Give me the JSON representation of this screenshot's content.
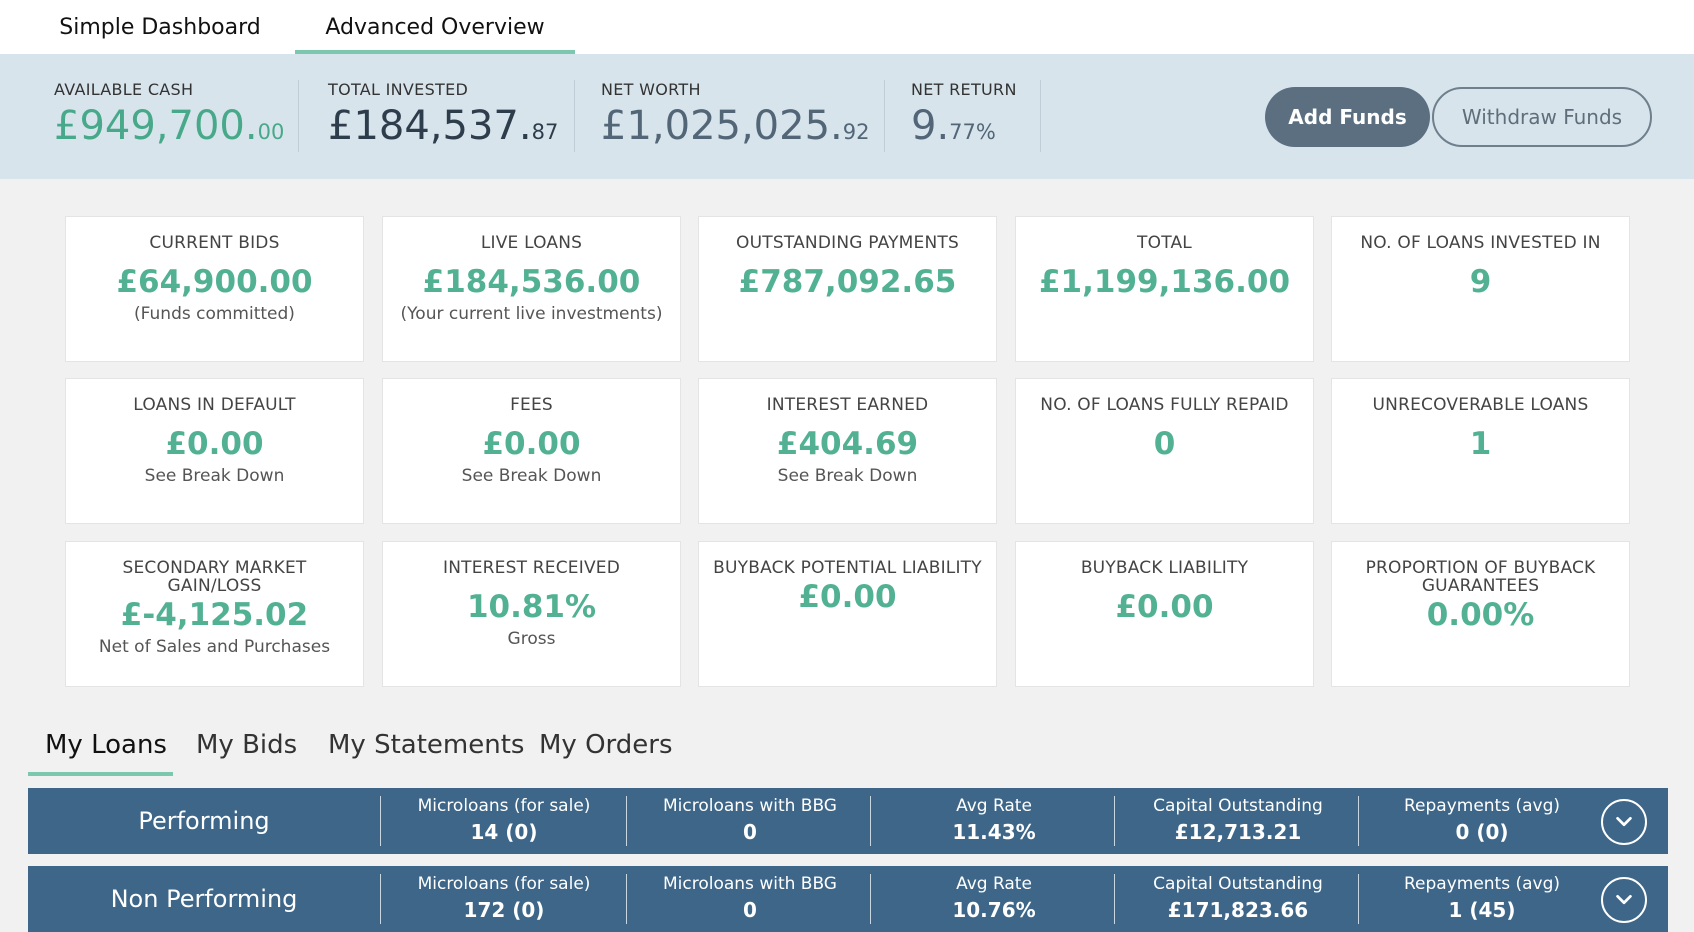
{
  "top_tabs": [
    {
      "label": "Simple Dashboard",
      "active": false
    },
    {
      "label": "Advanced Overview",
      "active": true
    }
  ],
  "summary": {
    "available_cash": {
      "label": "AVAILABLE CASH",
      "main": "£949,700.",
      "decimal": "00"
    },
    "total_invested": {
      "label": "TOTAL INVESTED",
      "main": "£184,537.",
      "decimal": "87"
    },
    "net_worth": {
      "label": "NET WORTH",
      "main": "£1,025,025.",
      "decimal": "92"
    },
    "net_return": {
      "label": "NET RETURN",
      "main": "9.",
      "decimal": "77%"
    }
  },
  "buttons": {
    "add_funds": "Add Funds",
    "withdraw_funds": "Withdraw Funds"
  },
  "cards": [
    {
      "title": "CURRENT BIDS",
      "value": "£64,900.00",
      "sub": "(Funds committed)"
    },
    {
      "title": "LIVE LOANS",
      "value": "£184,536.00",
      "sub": "(Your current live investments)"
    },
    {
      "title": "OUTSTANDING PAYMENTS",
      "value": "£787,092.65",
      "sub": ""
    },
    {
      "title": "TOTAL",
      "value": "£1,199,136.00",
      "sub": ""
    },
    {
      "title": "NO. OF LOANS INVESTED IN",
      "value": "9",
      "sub": ""
    },
    {
      "title": "LOANS IN DEFAULT",
      "value": "£0.00",
      "sub": "See Break Down"
    },
    {
      "title": "FEES",
      "value": "£0.00",
      "sub": "See Break Down"
    },
    {
      "title": "INTEREST EARNED",
      "value": "£404.69",
      "sub": "See Break Down"
    },
    {
      "title": "NO. OF LOANS FULLY REPAID",
      "value": "0",
      "sub": ""
    },
    {
      "title": "UNRECOVERABLE LOANS",
      "value": "1",
      "sub": ""
    },
    {
      "title": "SECONDARY MARKET GAIN/LOSS",
      "value": "£-4,125.02",
      "sub": "Net of Sales and Purchases"
    },
    {
      "title": "INTEREST RECEIVED",
      "value": "10.81%",
      "sub": "Gross"
    },
    {
      "title": "BUYBACK POTENTIAL LIABILITY",
      "value": "£0.00",
      "sub": ""
    },
    {
      "title": "BUYBACK LIABILITY",
      "value": "£0.00",
      "sub": ""
    },
    {
      "title": "PROPORTION OF BUYBACK GUARANTEES",
      "value": "0.00%",
      "sub": ""
    }
  ],
  "bottom_tabs": [
    {
      "label": "My Loans",
      "active": true
    },
    {
      "label": "My Bids",
      "active": false
    },
    {
      "label": "My Statements",
      "active": false
    },
    {
      "label": "My Orders",
      "active": false
    }
  ],
  "loan_rows": [
    {
      "title": "Performing",
      "columns": [
        {
          "header": "Microloans (for sale)",
          "value": "14 (0)"
        },
        {
          "header": "Microloans with BBG",
          "value": "0"
        },
        {
          "header": "Avg Rate",
          "value": "11.43%"
        },
        {
          "header": "Capital Outstanding",
          "value": "£12,713.21"
        },
        {
          "header": "Repayments (avg)",
          "value": "0 (0)"
        }
      ],
      "toggle_icon": "chevron-down-icon"
    },
    {
      "title": "Non Performing",
      "columns": [
        {
          "header": "Microloans (for sale)",
          "value": "172 (0)"
        },
        {
          "header": "Microloans with BBG",
          "value": "0"
        },
        {
          "header": "Avg Rate",
          "value": "10.76%"
        },
        {
          "header": "Capital Outstanding",
          "value": "£171,823.66"
        },
        {
          "header": "Repayments (avg)",
          "value": "1 (45)"
        }
      ],
      "toggle_icon": "chevron-down-icon"
    }
  ],
  "colors": {
    "accent_green": "#52b193",
    "band": "#d8e4ec",
    "row_blue": "#3d6688",
    "button_dark": "#5b6f80"
  }
}
